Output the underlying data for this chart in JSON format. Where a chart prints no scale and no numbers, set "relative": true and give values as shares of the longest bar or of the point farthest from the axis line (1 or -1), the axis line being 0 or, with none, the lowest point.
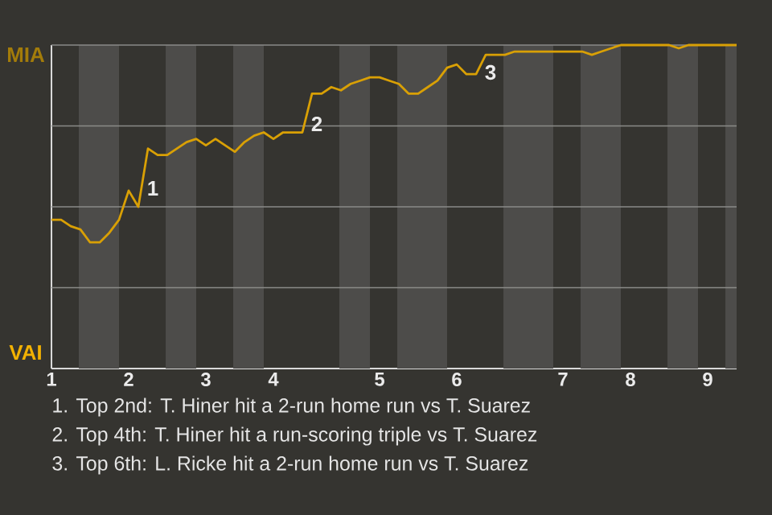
{
  "chart_data": {
    "type": "line",
    "relative": true,
    "grid": "y",
    "line_style": "solid",
    "categories": [
      "1",
      null,
      null,
      null,
      null,
      null,
      null,
      null,
      "2",
      null,
      null,
      null,
      null,
      null,
      null,
      null,
      "3",
      null,
      null,
      null,
      null,
      null,
      null,
      "4",
      null,
      null,
      null,
      null,
      null,
      null,
      null,
      null,
      null,
      null,
      "5",
      null,
      null,
      null,
      null,
      null,
      null,
      null,
      "6",
      null,
      null,
      null,
      null,
      null,
      null,
      null,
      null,
      null,
      null,
      "7",
      null,
      null,
      null,
      null,
      null,
      null,
      "8",
      null,
      null,
      null,
      null,
      null,
      null,
      null,
      "9",
      null,
      null,
      null
    ],
    "series": [
      {
        "color": "#d9a005",
        "values": [
          0.46,
          0.46,
          0.44,
          0.43,
          0.39,
          0.39,
          0.42,
          0.46,
          0.55,
          0.5,
          0.68,
          0.66,
          0.66,
          0.68,
          0.7,
          0.71,
          0.69,
          0.71,
          0.69,
          0.67,
          0.7,
          0.72,
          0.73,
          0.71,
          0.73,
          0.73,
          0.73,
          0.85,
          0.85,
          0.87,
          0.86,
          0.88,
          0.89,
          0.9,
          0.9,
          0.89,
          0.88,
          0.85,
          0.85,
          0.87,
          0.89,
          0.93,
          0.94,
          0.91,
          0.91,
          0.97,
          0.97,
          0.97,
          0.98,
          0.98,
          0.98,
          0.98,
          0.98,
          0.98,
          0.98,
          0.98,
          0.97,
          0.98,
          0.99,
          1,
          1,
          1,
          1,
          1,
          1,
          0.99,
          1,
          1,
          1,
          1,
          1,
          1
        ]
      }
    ],
    "annotations": [
      "MIA",
      "VAI",
      "1",
      "2",
      "3",
      "1. Top 2nd: T. Hiner hit a 2-run home run vs T. Suarez",
      "2. Top 4th: T. Hiner hit a run-scoring triple vs T. Suarez",
      "3. Top 6th: L. Ricke hit a 2-run home run vs T. Suarez"
    ]
  }
}
